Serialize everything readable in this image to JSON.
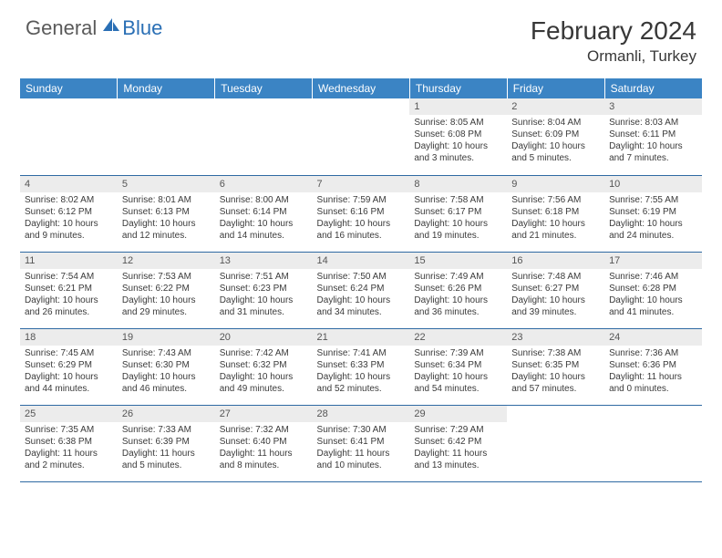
{
  "logo": {
    "general": "General",
    "blue": "Blue"
  },
  "title": "February 2024",
  "location": "Ormanli, Turkey",
  "weekdays": [
    "Sunday",
    "Monday",
    "Tuesday",
    "Wednesday",
    "Thursday",
    "Friday",
    "Saturday"
  ],
  "colors": {
    "header_bg": "#3b84c4",
    "row_divider": "#2f6aa3",
    "daynum_bg": "#ececec",
    "text": "#3a3a3a",
    "logo_gray": "#5a5a5a",
    "logo_blue": "#2a6fb5"
  },
  "weeks": [
    [
      {
        "n": "",
        "sr": "",
        "ss": "",
        "dl": ""
      },
      {
        "n": "",
        "sr": "",
        "ss": "",
        "dl": ""
      },
      {
        "n": "",
        "sr": "",
        "ss": "",
        "dl": ""
      },
      {
        "n": "",
        "sr": "",
        "ss": "",
        "dl": ""
      },
      {
        "n": "1",
        "sr": "Sunrise: 8:05 AM",
        "ss": "Sunset: 6:08 PM",
        "dl": "Daylight: 10 hours and 3 minutes."
      },
      {
        "n": "2",
        "sr": "Sunrise: 8:04 AM",
        "ss": "Sunset: 6:09 PM",
        "dl": "Daylight: 10 hours and 5 minutes."
      },
      {
        "n": "3",
        "sr": "Sunrise: 8:03 AM",
        "ss": "Sunset: 6:11 PM",
        "dl": "Daylight: 10 hours and 7 minutes."
      }
    ],
    [
      {
        "n": "4",
        "sr": "Sunrise: 8:02 AM",
        "ss": "Sunset: 6:12 PM",
        "dl": "Daylight: 10 hours and 9 minutes."
      },
      {
        "n": "5",
        "sr": "Sunrise: 8:01 AM",
        "ss": "Sunset: 6:13 PM",
        "dl": "Daylight: 10 hours and 12 minutes."
      },
      {
        "n": "6",
        "sr": "Sunrise: 8:00 AM",
        "ss": "Sunset: 6:14 PM",
        "dl": "Daylight: 10 hours and 14 minutes."
      },
      {
        "n": "7",
        "sr": "Sunrise: 7:59 AM",
        "ss": "Sunset: 6:16 PM",
        "dl": "Daylight: 10 hours and 16 minutes."
      },
      {
        "n": "8",
        "sr": "Sunrise: 7:58 AM",
        "ss": "Sunset: 6:17 PM",
        "dl": "Daylight: 10 hours and 19 minutes."
      },
      {
        "n": "9",
        "sr": "Sunrise: 7:56 AM",
        "ss": "Sunset: 6:18 PM",
        "dl": "Daylight: 10 hours and 21 minutes."
      },
      {
        "n": "10",
        "sr": "Sunrise: 7:55 AM",
        "ss": "Sunset: 6:19 PM",
        "dl": "Daylight: 10 hours and 24 minutes."
      }
    ],
    [
      {
        "n": "11",
        "sr": "Sunrise: 7:54 AM",
        "ss": "Sunset: 6:21 PM",
        "dl": "Daylight: 10 hours and 26 minutes."
      },
      {
        "n": "12",
        "sr": "Sunrise: 7:53 AM",
        "ss": "Sunset: 6:22 PM",
        "dl": "Daylight: 10 hours and 29 minutes."
      },
      {
        "n": "13",
        "sr": "Sunrise: 7:51 AM",
        "ss": "Sunset: 6:23 PM",
        "dl": "Daylight: 10 hours and 31 minutes."
      },
      {
        "n": "14",
        "sr": "Sunrise: 7:50 AM",
        "ss": "Sunset: 6:24 PM",
        "dl": "Daylight: 10 hours and 34 minutes."
      },
      {
        "n": "15",
        "sr": "Sunrise: 7:49 AM",
        "ss": "Sunset: 6:26 PM",
        "dl": "Daylight: 10 hours and 36 minutes."
      },
      {
        "n": "16",
        "sr": "Sunrise: 7:48 AM",
        "ss": "Sunset: 6:27 PM",
        "dl": "Daylight: 10 hours and 39 minutes."
      },
      {
        "n": "17",
        "sr": "Sunrise: 7:46 AM",
        "ss": "Sunset: 6:28 PM",
        "dl": "Daylight: 10 hours and 41 minutes."
      }
    ],
    [
      {
        "n": "18",
        "sr": "Sunrise: 7:45 AM",
        "ss": "Sunset: 6:29 PM",
        "dl": "Daylight: 10 hours and 44 minutes."
      },
      {
        "n": "19",
        "sr": "Sunrise: 7:43 AM",
        "ss": "Sunset: 6:30 PM",
        "dl": "Daylight: 10 hours and 46 minutes."
      },
      {
        "n": "20",
        "sr": "Sunrise: 7:42 AM",
        "ss": "Sunset: 6:32 PM",
        "dl": "Daylight: 10 hours and 49 minutes."
      },
      {
        "n": "21",
        "sr": "Sunrise: 7:41 AM",
        "ss": "Sunset: 6:33 PM",
        "dl": "Daylight: 10 hours and 52 minutes."
      },
      {
        "n": "22",
        "sr": "Sunrise: 7:39 AM",
        "ss": "Sunset: 6:34 PM",
        "dl": "Daylight: 10 hours and 54 minutes."
      },
      {
        "n": "23",
        "sr": "Sunrise: 7:38 AM",
        "ss": "Sunset: 6:35 PM",
        "dl": "Daylight: 10 hours and 57 minutes."
      },
      {
        "n": "24",
        "sr": "Sunrise: 7:36 AM",
        "ss": "Sunset: 6:36 PM",
        "dl": "Daylight: 11 hours and 0 minutes."
      }
    ],
    [
      {
        "n": "25",
        "sr": "Sunrise: 7:35 AM",
        "ss": "Sunset: 6:38 PM",
        "dl": "Daylight: 11 hours and 2 minutes."
      },
      {
        "n": "26",
        "sr": "Sunrise: 7:33 AM",
        "ss": "Sunset: 6:39 PM",
        "dl": "Daylight: 11 hours and 5 minutes."
      },
      {
        "n": "27",
        "sr": "Sunrise: 7:32 AM",
        "ss": "Sunset: 6:40 PM",
        "dl": "Daylight: 11 hours and 8 minutes."
      },
      {
        "n": "28",
        "sr": "Sunrise: 7:30 AM",
        "ss": "Sunset: 6:41 PM",
        "dl": "Daylight: 11 hours and 10 minutes."
      },
      {
        "n": "29",
        "sr": "Sunrise: 7:29 AM",
        "ss": "Sunset: 6:42 PM",
        "dl": "Daylight: 11 hours and 13 minutes."
      },
      {
        "n": "",
        "sr": "",
        "ss": "",
        "dl": ""
      },
      {
        "n": "",
        "sr": "",
        "ss": "",
        "dl": ""
      }
    ]
  ]
}
